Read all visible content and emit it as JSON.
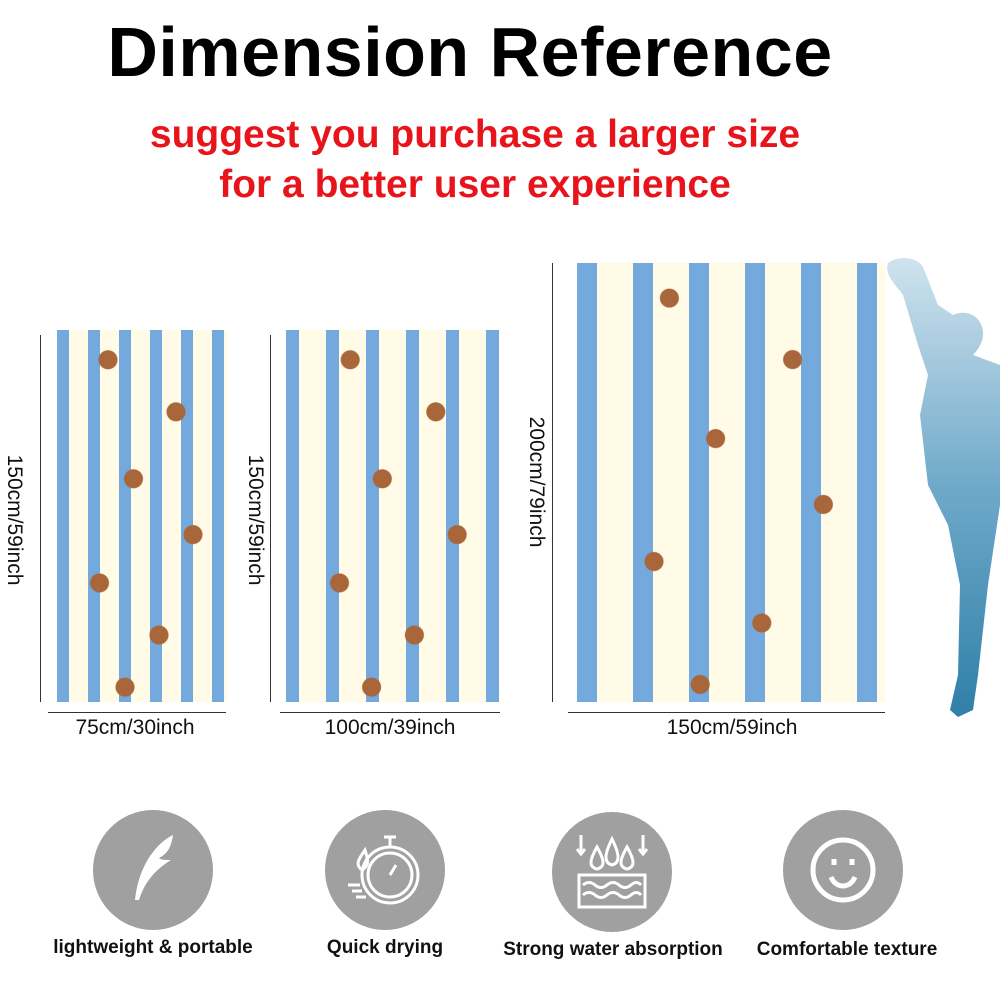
{
  "header": {
    "title": "Dimension Reference",
    "subtitle_line1": "suggest you purchase a larger size",
    "subtitle_line2": "for a better user experience"
  },
  "sizes": [
    {
      "height_label": "150cm/59inch",
      "width_label": "75cm/30inch"
    },
    {
      "height_label": "150cm/59inch",
      "width_label": "100cm/39inch"
    },
    {
      "height_label": "200cm/79inch",
      "width_label": "150cm/59inch"
    }
  ],
  "features": [
    {
      "icon": "feather-icon",
      "label": "lightweight & portable"
    },
    {
      "icon": "stopwatch-drop-icon",
      "label": "Quick drying"
    },
    {
      "icon": "water-absorption-icon",
      "label": "Strong water absorption"
    },
    {
      "icon": "smiley-face-icon",
      "label": "Comfortable texture"
    }
  ],
  "colors": {
    "title": "#000000",
    "subtitle": "#e8141c",
    "stripe_blue": "#73a9dd",
    "stripe_cream": "#fffbe6",
    "feature_circle": "#a0a0a0"
  }
}
